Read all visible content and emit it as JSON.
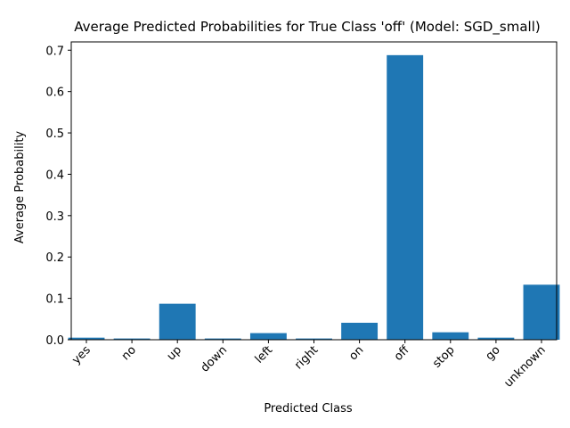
{
  "chart_data": {
    "type": "bar",
    "title": "Average Predicted Probabilities for True Class 'off' (Model: SGD_small)",
    "xlabel": "Predicted Class",
    "ylabel": "Average Probability",
    "categories": [
      "yes",
      "no",
      "up",
      "down",
      "left",
      "right",
      "on",
      "off",
      "stop",
      "go",
      "unknown"
    ],
    "values": [
      0.005,
      0.003,
      0.087,
      0.003,
      0.016,
      0.003,
      0.041,
      0.688,
      0.018,
      0.005,
      0.133
    ],
    "ylim": [
      0,
      0.72
    ],
    "yticks": [
      "0.0",
      "0.1",
      "0.2",
      "0.3",
      "0.4",
      "0.5",
      "0.6",
      "0.7"
    ],
    "bar_color": "#1f77b4",
    "grid": false,
    "legend": "none"
  }
}
